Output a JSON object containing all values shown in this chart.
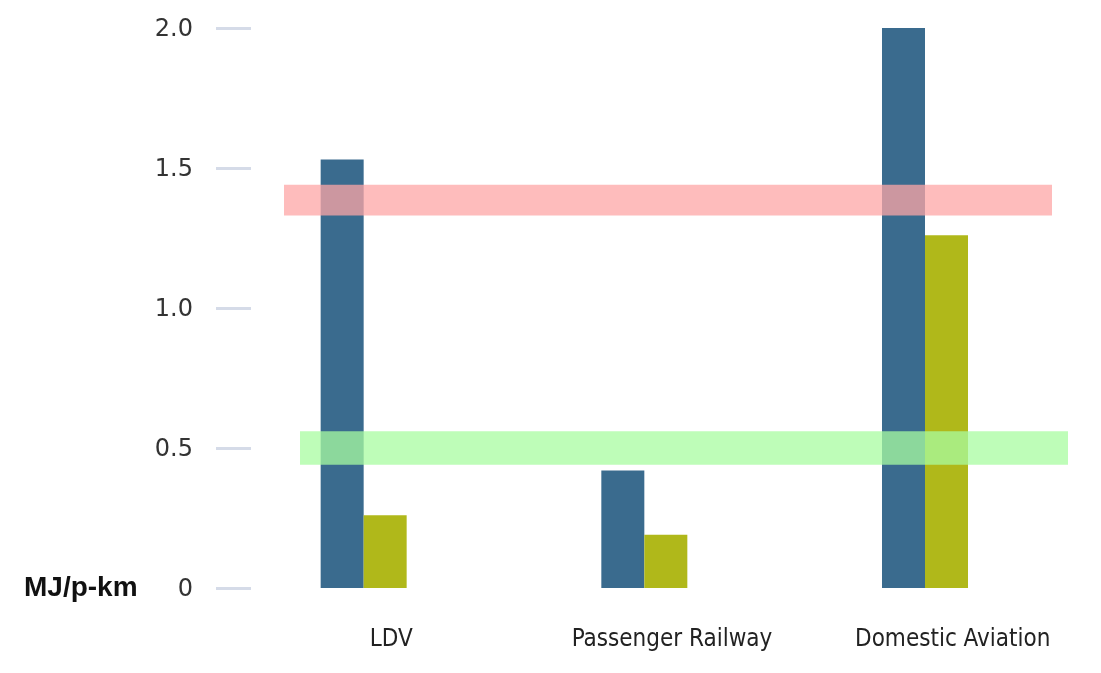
{
  "chart_data": {
    "type": "bar",
    "ylabel": "MJ/p-km",
    "categories": [
      "LDV",
      "Passenger Railway",
      "Domestic Aviation"
    ],
    "series": [
      {
        "color": "#3a6b8e",
        "values": [
          1.53,
          0.42,
          2.0
        ]
      },
      {
        "color": "#b0b81a",
        "values": [
          0.26,
          0.19,
          1.26
        ]
      }
    ],
    "ylim": [
      0,
      2.0
    ],
    "yticks": [
      0,
      {
        "value": 0.5,
        "label": "0.5"
      },
      {
        "value": 1,
        "label": "1.0"
      },
      {
        "value": 1.5,
        "label": "1.5"
      },
      {
        "value": 2,
        "label": "2.0"
      }
    ],
    "bands": [
      {
        "axis": "y",
        "from": 1.33,
        "to": 1.44,
        "color": "#fea5a5"
      },
      {
        "axis": "y",
        "from": 0.44,
        "to": 0.56,
        "color": "#a8fca0"
      }
    ],
    "grid": false
  }
}
